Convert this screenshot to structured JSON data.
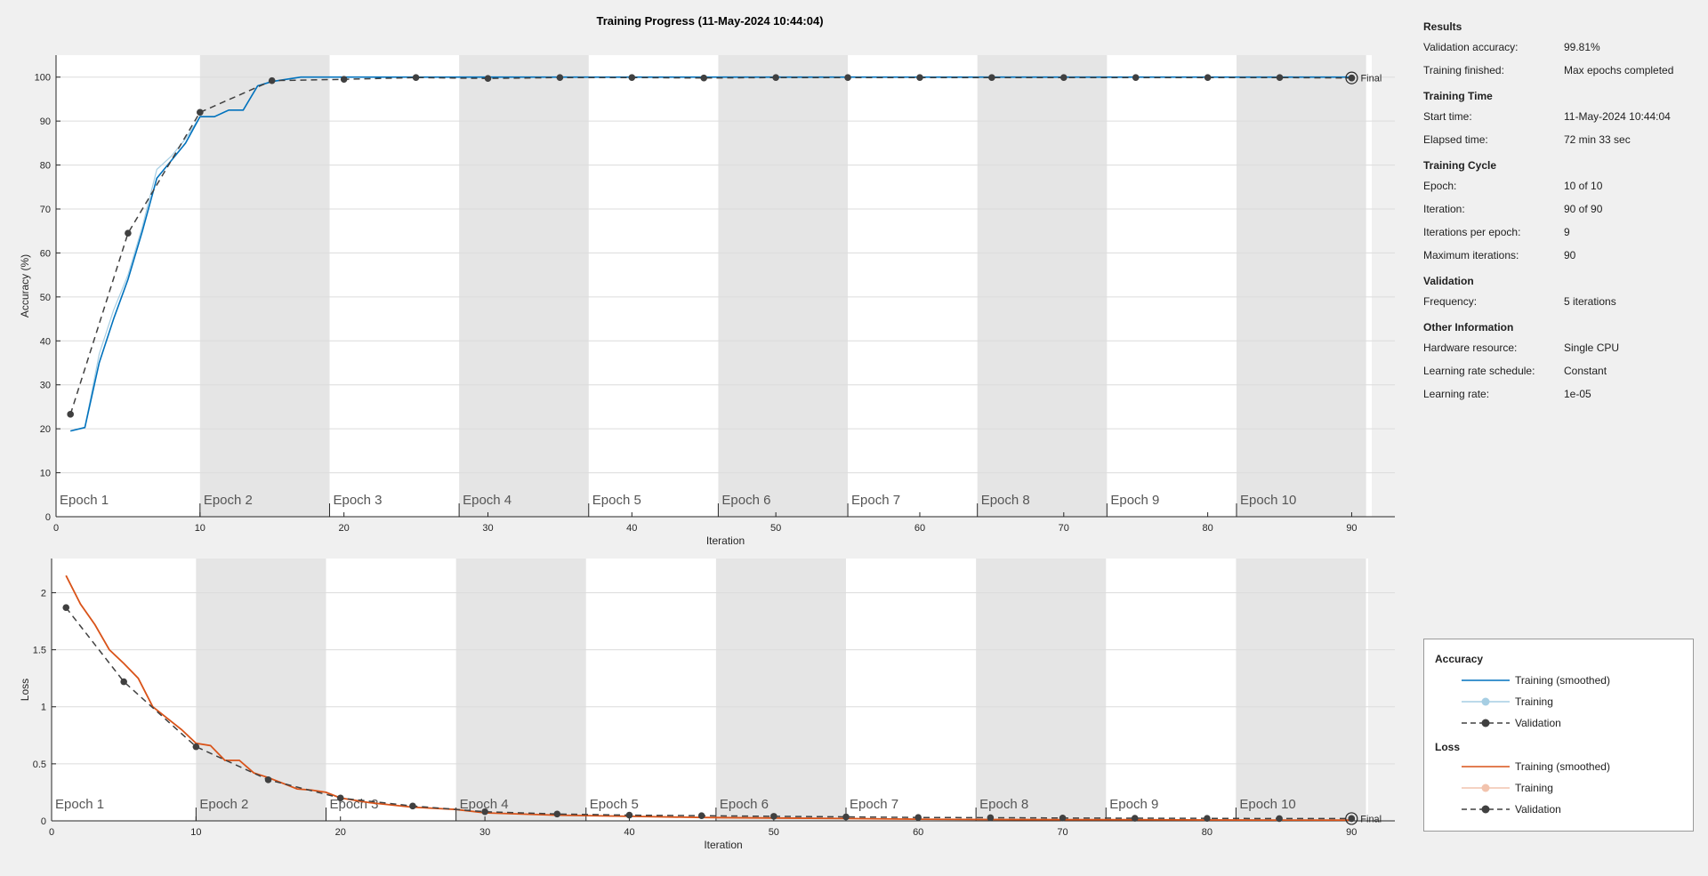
{
  "title": "Training Progress (11-May-2024 10:44:04)",
  "colors": {
    "accuracy_smoothed": "#0072bd",
    "accuracy_raw": "#a6cee3",
    "loss_smoothed": "#d95319",
    "loss_raw": "#f2c3ad",
    "validation": "#404040",
    "epoch_shade": "#e5e5e5",
    "plot_bg": "#ffffff",
    "grid": "#dcdcdc"
  },
  "info": {
    "results": {
      "heading": "Results",
      "rows": [
        {
          "key": "Validation accuracy:",
          "value": "99.81%"
        },
        {
          "key": "Training finished:",
          "value": "Max epochs completed"
        }
      ]
    },
    "training_time": {
      "heading": "Training Time",
      "rows": [
        {
          "key": "Start time:",
          "value": "11-May-2024 10:44:04"
        },
        {
          "key": "Elapsed time:",
          "value": "72 min 33 sec"
        }
      ]
    },
    "training_cycle": {
      "heading": "Training Cycle",
      "rows": [
        {
          "key": "Epoch:",
          "value": "10 of 10"
        },
        {
          "key": "Iteration:",
          "value": "90 of 90"
        },
        {
          "key": "Iterations per epoch:",
          "value": "9"
        },
        {
          "key": "Maximum iterations:",
          "value": "90"
        }
      ]
    },
    "validation": {
      "heading": "Validation",
      "rows": [
        {
          "key": "Frequency:",
          "value": "5 iterations"
        }
      ]
    },
    "other": {
      "heading": "Other Information",
      "rows": [
        {
          "key": "Hardware resource:",
          "value": "Single CPU"
        },
        {
          "key": "Learning rate schedule:",
          "value": "Constant"
        },
        {
          "key": "Learning rate:",
          "value": "1e-05"
        }
      ]
    }
  },
  "legend": {
    "accuracy_heading": "Accuracy",
    "loss_heading": "Loss",
    "smoothed": "Training (smoothed)",
    "training": "Training",
    "validation": "Validation"
  },
  "chart_data": [
    {
      "type": "line",
      "title": "",
      "xlabel": "Iteration",
      "ylabel": "Accuracy (%)",
      "xlim": [
        0,
        93
      ],
      "ylim": [
        0,
        105
      ],
      "xticks": [
        0,
        10,
        20,
        30,
        40,
        50,
        60,
        70,
        80,
        90
      ],
      "yticks": [
        0,
        10,
        20,
        30,
        40,
        50,
        60,
        70,
        80,
        90,
        100
      ],
      "epoch_labels": [
        "Epoch 1",
        "Epoch 2",
        "Epoch 3",
        "Epoch 4",
        "Epoch 5",
        "Epoch 6",
        "Epoch 7",
        "Epoch 8",
        "Epoch 9",
        "Epoch 10"
      ],
      "epoch_bounds": [
        [
          0,
          10
        ],
        [
          10,
          19
        ],
        [
          19,
          28
        ],
        [
          28,
          37
        ],
        [
          37,
          46
        ],
        [
          46,
          55
        ],
        [
          55,
          64
        ],
        [
          64,
          73
        ],
        [
          73,
          82
        ],
        [
          82,
          91
        ]
      ],
      "final_label": "Final",
      "series": [
        {
          "name": "Training (smoothed)",
          "x": [
            1,
            2,
            3,
            4,
            5,
            6,
            7,
            8,
            9,
            10,
            11,
            12,
            13,
            14,
            15,
            16,
            17,
            18,
            19,
            20,
            25,
            30,
            35,
            40,
            45,
            50,
            55,
            60,
            65,
            70,
            75,
            80,
            85,
            90
          ],
          "values": [
            19.5,
            20.3,
            35,
            45,
            54,
            65,
            77,
            81,
            85,
            91,
            91,
            92.5,
            92.5,
            98,
            99,
            99.5,
            100,
            100,
            100,
            100,
            100,
            100,
            100,
            100,
            100,
            100,
            100,
            100,
            100,
            100,
            100,
            100,
            100,
            100
          ]
        },
        {
          "name": "Training",
          "x": [
            1,
            2,
            3,
            4,
            5,
            6,
            7,
            8,
            9,
            10,
            11,
            12,
            13,
            14,
            15,
            16,
            17,
            18,
            19,
            20,
            25,
            30,
            35,
            40,
            45,
            50,
            55,
            60,
            65,
            70,
            75,
            80,
            85,
            90
          ],
          "values": [
            19.5,
            20.3,
            37,
            47,
            55,
            66,
            79,
            82,
            86,
            91,
            91,
            92.5,
            92.5,
            98,
            99,
            99.5,
            100,
            100,
            100,
            100,
            100,
            100,
            100,
            100,
            100,
            100,
            100,
            100,
            100,
            100,
            100,
            100,
            100,
            100
          ]
        },
        {
          "name": "Validation",
          "x": [
            1,
            5,
            10,
            15,
            20,
            25,
            30,
            35,
            40,
            45,
            50,
            55,
            60,
            65,
            70,
            75,
            80,
            85,
            90
          ],
          "values": [
            23.3,
            64.5,
            92,
            99.2,
            99.5,
            99.9,
            99.7,
            99.9,
            99.9,
            99.8,
            99.9,
            99.9,
            99.9,
            99.9,
            99.9,
            99.9,
            99.9,
            99.9,
            99.81
          ]
        }
      ]
    },
    {
      "type": "line",
      "title": "",
      "xlabel": "Iteration",
      "ylabel": "Loss",
      "xlim": [
        0,
        93
      ],
      "ylim": [
        0,
        2.3
      ],
      "xticks": [
        0,
        10,
        20,
        30,
        40,
        50,
        60,
        70,
        80,
        90
      ],
      "yticks": [
        0,
        0.5,
        1,
        1.5,
        2
      ],
      "ytick_labels": [
        "0",
        "0.5",
        "1",
        "1.5",
        "2"
      ],
      "epoch_labels": [
        "Epoch 1",
        "Epoch 2",
        "Epoch 3",
        "Epoch 4",
        "Epoch 5",
        "Epoch 6",
        "Epoch 7",
        "Epoch 8",
        "Epoch 9",
        "Epoch 10"
      ],
      "epoch_bounds": [
        [
          0,
          10
        ],
        [
          10,
          19
        ],
        [
          19,
          28
        ],
        [
          28,
          37
        ],
        [
          37,
          46
        ],
        [
          46,
          55
        ],
        [
          55,
          64
        ],
        [
          64,
          73
        ],
        [
          73,
          82
        ],
        [
          82,
          91
        ]
      ],
      "final_label": "Final",
      "series": [
        {
          "name": "Training (smoothed)",
          "x": [
            1,
            2,
            3,
            4,
            5,
            6,
            7,
            8,
            9,
            10,
            11,
            12,
            13,
            14,
            15,
            16,
            17,
            18,
            19,
            20,
            22,
            25,
            28,
            30,
            35,
            40,
            45,
            50,
            55,
            60,
            65,
            70,
            75,
            80,
            85,
            90
          ],
          "values": [
            2.15,
            1.9,
            1.72,
            1.5,
            1.38,
            1.25,
            1.0,
            0.9,
            0.8,
            0.68,
            0.66,
            0.53,
            0.53,
            0.42,
            0.38,
            0.33,
            0.28,
            0.27,
            0.25,
            0.2,
            0.16,
            0.12,
            0.1,
            0.07,
            0.05,
            0.04,
            0.03,
            0.025,
            0.02,
            0.015,
            0.012,
            0.01,
            0.01,
            0.008,
            0.007,
            0.006
          ]
        },
        {
          "name": "Training",
          "x": [
            1,
            2,
            3,
            4,
            5,
            6,
            7,
            8,
            9,
            10,
            11,
            12,
            13,
            14,
            15,
            16,
            17,
            18,
            19,
            20,
            22,
            25,
            28,
            30,
            35,
            40,
            45,
            50,
            55,
            60,
            65,
            70,
            75,
            80,
            85,
            90
          ],
          "values": [
            2.15,
            1.9,
            1.72,
            1.5,
            1.38,
            1.25,
            1.0,
            0.9,
            0.8,
            0.68,
            0.66,
            0.53,
            0.53,
            0.42,
            0.38,
            0.33,
            0.28,
            0.27,
            0.25,
            0.2,
            0.16,
            0.12,
            0.1,
            0.07,
            0.05,
            0.04,
            0.03,
            0.025,
            0.02,
            0.015,
            0.012,
            0.01,
            0.01,
            0.008,
            0.007,
            0.006
          ]
        },
        {
          "name": "Validation",
          "x": [
            1,
            5,
            10,
            15,
            20,
            25,
            30,
            35,
            40,
            45,
            50,
            55,
            60,
            65,
            70,
            75,
            80,
            85,
            90
          ],
          "values": [
            1.87,
            1.22,
            0.65,
            0.36,
            0.2,
            0.13,
            0.08,
            0.06,
            0.05,
            0.045,
            0.04,
            0.035,
            0.03,
            0.028,
            0.025,
            0.023,
            0.022,
            0.02,
            0.02
          ]
        }
      ]
    }
  ]
}
